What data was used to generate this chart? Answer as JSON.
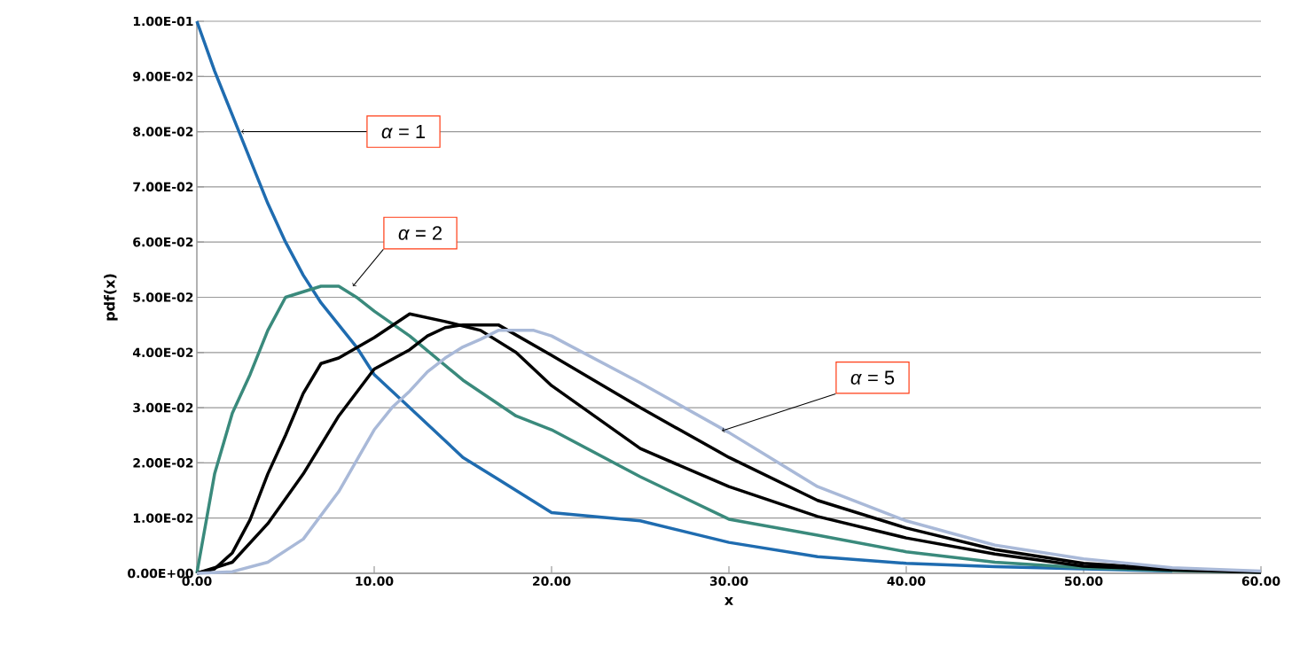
{
  "chart_data": {
    "type": "line",
    "xlabel": "x",
    "ylabel": "pdf(x)",
    "xlim": [
      0,
      60
    ],
    "ylim": [
      0,
      0.1
    ],
    "xticks": [
      {
        "value": 0,
        "label": "0.00"
      },
      {
        "value": 10,
        "label": "10.00"
      },
      {
        "value": 20,
        "label": "20.00"
      },
      {
        "value": 30,
        "label": "30.00"
      },
      {
        "value": 40,
        "label": "40.00"
      },
      {
        "value": 50,
        "label": "50.00"
      },
      {
        "value": 60,
        "label": "60.00"
      }
    ],
    "yticks": [
      {
        "value": 0,
        "label": "0.00E+00"
      },
      {
        "value": 0.01,
        "label": "1.00E-02"
      },
      {
        "value": 0.02,
        "label": "2.00E-02"
      },
      {
        "value": 0.03,
        "label": "3.00E-02"
      },
      {
        "value": 0.04,
        "label": "4.00E-02"
      },
      {
        "value": 0.05,
        "label": "5.00E-02"
      },
      {
        "value": 0.06,
        "label": "6.00E-02"
      },
      {
        "value": 0.07,
        "label": "7.00E-02"
      },
      {
        "value": 0.08,
        "label": "8.00E-02"
      },
      {
        "value": 0.09,
        "label": "9.00E-02"
      },
      {
        "value": 0.1,
        "label": "1.00E-01"
      }
    ],
    "grid": "y",
    "legend": false,
    "marker": "none",
    "line_style": "solid",
    "annotations": [
      {
        "text": "*α* = 1",
        "x": 2.5,
        "y": 0.08
      },
      {
        "text": "*α* = 2",
        "x": 8.8,
        "y": 0.052
      },
      {
        "text": "*α* = 5",
        "x": 29.6,
        "y": 0.0258
      }
    ],
    "series": [
      {
        "color": "#1f6cb0",
        "x": [
          0,
          1,
          2,
          3,
          4,
          5,
          6,
          7,
          8,
          9,
          10,
          12,
          15,
          17,
          20,
          25,
          30,
          35,
          40,
          45,
          50,
          55
        ],
        "values": [
          0.1,
          0.091,
          0.083,
          0.075,
          0.067,
          0.06,
          0.054,
          0.049,
          0.045,
          0.041,
          0.036,
          0.03,
          0.021,
          0.017,
          0.011,
          0.0095,
          0.0056,
          0.003,
          0.0018,
          0.0012,
          0.0008,
          0.0004
        ]
      },
      {
        "color": "#3a8a7c",
        "x": [
          0,
          1,
          2,
          3,
          4,
          5,
          6,
          7,
          8,
          9,
          10,
          12,
          15,
          18,
          20,
          25,
          30,
          35,
          40,
          45,
          50,
          55,
          60
        ],
        "values": [
          0,
          0.018,
          0.029,
          0.036,
          0.044,
          0.05,
          0.051,
          0.052,
          0.052,
          0.05,
          0.0475,
          0.043,
          0.035,
          0.0285,
          0.026,
          0.0175,
          0.0098,
          0.0069,
          0.0039,
          0.002,
          0.001,
          0.0005,
          0.0002
        ]
      },
      {
        "color": "#000000",
        "x": [
          0,
          1,
          2,
          3,
          4,
          5,
          6,
          7,
          8,
          10,
          12,
          14,
          16,
          18,
          20,
          25,
          30,
          35,
          40,
          45,
          50,
          55,
          60
        ],
        "values": [
          0,
          0.0008,
          0.0037,
          0.0097,
          0.018,
          0.025,
          0.0326,
          0.038,
          0.039,
          0.0427,
          0.047,
          0.0456,
          0.044,
          0.04,
          0.034,
          0.0226,
          0.0157,
          0.0103,
          0.0064,
          0.0035,
          0.0013,
          0.0006,
          0.0002
        ]
      },
      {
        "color": "#000000",
        "x": [
          0,
          2,
          4,
          6,
          8,
          10,
          12,
          13,
          14,
          15,
          17,
          20,
          25,
          30,
          35,
          40,
          45,
          50,
          55,
          60
        ],
        "values": [
          0,
          0.002,
          0.009,
          0.018,
          0.0285,
          0.037,
          0.0405,
          0.043,
          0.0445,
          0.045,
          0.045,
          0.0395,
          0.03,
          0.021,
          0.0132,
          0.0082,
          0.0043,
          0.0018,
          0.0008,
          0.0002
        ]
      },
      {
        "color": "#a9b9d8",
        "x": [
          0,
          2,
          4,
          6,
          8,
          10,
          11,
          12,
          13,
          14,
          15,
          16,
          17,
          19,
          20,
          25,
          30,
          35,
          40,
          45,
          50,
          55,
          60
        ],
        "values": [
          0,
          0.0003,
          0.002,
          0.0062,
          0.0148,
          0.026,
          0.03,
          0.033,
          0.0365,
          0.039,
          0.041,
          0.0424,
          0.044,
          0.044,
          0.043,
          0.0345,
          0.0255,
          0.0157,
          0.0095,
          0.0051,
          0.0026,
          0.001,
          0.0004
        ]
      }
    ]
  }
}
